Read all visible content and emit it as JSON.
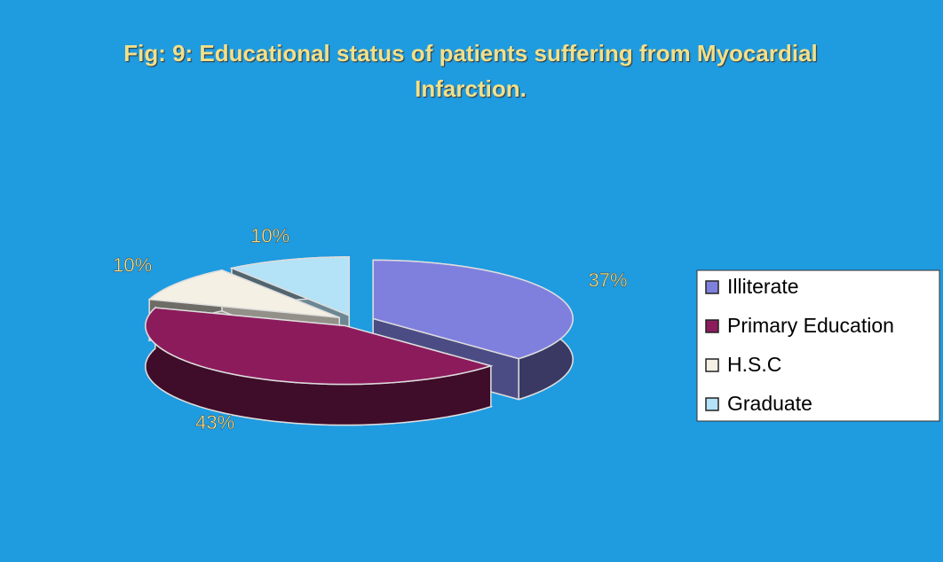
{
  "chart_data": {
    "type": "pie3d",
    "title": "Fig: 9: Educational status of patients suffering from Myocardial Infarction.",
    "categories": [
      "Illiterate",
      "Primary Education",
      "H.S.C",
      "Graduate"
    ],
    "values": [
      37,
      43,
      10,
      10
    ],
    "value_labels": [
      "37%",
      "43%",
      "10%",
      "10%"
    ],
    "colors": [
      "#7f80de",
      "#8c1b5c",
      "#f4f0e4",
      "#b4e2f6"
    ],
    "legend": "right"
  }
}
